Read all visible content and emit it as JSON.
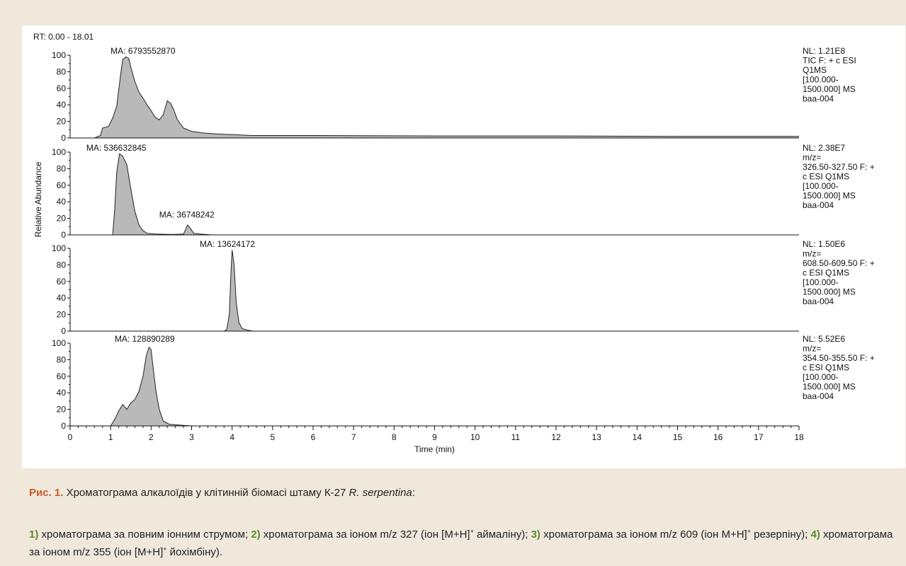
{
  "chart_data": {
    "type": "line",
    "header": "RT: 0.00 - 18.01",
    "ylabel": "Relative Abundance",
    "xlabel": "Time (min)",
    "xlim": [
      0,
      18
    ],
    "ylim": [
      0,
      100
    ],
    "x_ticks": [
      0,
      1,
      2,
      3,
      4,
      5,
      6,
      7,
      8,
      9,
      10,
      11,
      12,
      13,
      14,
      15,
      16,
      17,
      18
    ],
    "y_ticks": [
      0,
      20,
      40,
      60,
      80,
      100
    ],
    "panels": [
      {
        "area_label": "MA: 6793552870",
        "info": [
          "NL: 1.21E8",
          "TIC F: + c ESI",
          "Q1MS",
          "[100.000-",
          "1500.000]  MS",
          "baa-004"
        ],
        "points": [
          [
            0,
            0
          ],
          [
            0.6,
            0
          ],
          [
            0.75,
            3
          ],
          [
            0.8,
            12
          ],
          [
            0.95,
            14
          ],
          [
            1.05,
            24
          ],
          [
            1.15,
            38
          ],
          [
            1.25,
            78
          ],
          [
            1.3,
            95
          ],
          [
            1.38,
            98
          ],
          [
            1.45,
            96
          ],
          [
            1.5,
            85
          ],
          [
            1.6,
            68
          ],
          [
            1.7,
            55
          ],
          [
            1.8,
            48
          ],
          [
            1.9,
            40
          ],
          [
            2.0,
            33
          ],
          [
            2.1,
            25
          ],
          [
            2.2,
            22
          ],
          [
            2.3,
            28
          ],
          [
            2.4,
            45
          ],
          [
            2.48,
            42
          ],
          [
            2.55,
            35
          ],
          [
            2.65,
            22
          ],
          [
            2.8,
            12
          ],
          [
            3.0,
            8
          ],
          [
            3.3,
            6
          ],
          [
            3.6,
            5
          ],
          [
            4.0,
            4
          ],
          [
            4.5,
            3
          ],
          [
            6,
            3
          ],
          [
            9,
            2.5
          ],
          [
            12,
            2.5
          ],
          [
            15,
            2
          ],
          [
            18,
            2
          ]
        ],
        "label_x": 1.0
      },
      {
        "area_label": "MA: 536632845",
        "info": [
          "NL: 2.38E7",
          "m/z=",
          "326.50-327.50 F: +",
          "c ESI Q1MS",
          "[100.000-",
          "1500.000]  MS",
          "baa-004"
        ],
        "points": [
          [
            0,
            0
          ],
          [
            1.05,
            0
          ],
          [
            1.1,
            30
          ],
          [
            1.15,
            75
          ],
          [
            1.22,
            98
          ],
          [
            1.3,
            95
          ],
          [
            1.4,
            85
          ],
          [
            1.5,
            55
          ],
          [
            1.6,
            28
          ],
          [
            1.7,
            12
          ],
          [
            1.8,
            5
          ],
          [
            1.9,
            2
          ],
          [
            2.1,
            1
          ],
          [
            2.5,
            0.5
          ],
          [
            2.8,
            1
          ],
          [
            2.9,
            12
          ],
          [
            2.97,
            8
          ],
          [
            3.05,
            2
          ],
          [
            3.2,
            1
          ],
          [
            3.5,
            0
          ],
          [
            18,
            0
          ]
        ],
        "label_x": 0.4,
        "extra_label": {
          "x": 2.2,
          "text": "MA: 36748242",
          "y": 21
        }
      },
      {
        "area_label": "MA: 13624172",
        "info": [
          "NL: 1.50E6",
          "m/z=",
          "608.50-609.50 F: +",
          "c ESI Q1MS",
          "[100.000-",
          "1500.000]  MS",
          "baa-004"
        ],
        "points": [
          [
            0,
            0
          ],
          [
            3.8,
            0
          ],
          [
            3.87,
            2
          ],
          [
            3.93,
            20
          ],
          [
            3.97,
            70
          ],
          [
            4.0,
            98
          ],
          [
            4.05,
            80
          ],
          [
            4.1,
            35
          ],
          [
            4.17,
            10
          ],
          [
            4.25,
            3
          ],
          [
            4.4,
            1
          ],
          [
            4.5,
            0
          ],
          [
            18,
            0
          ]
        ],
        "label_x": 3.2
      },
      {
        "area_label": "MA: 128890289",
        "info": [
          "NL: 5.52E6",
          "m/z=",
          "354.50-355.50 F: +",
          "c ESI Q1MS",
          "[100.000-",
          "1500.000]  MS",
          "baa-004"
        ],
        "points": [
          [
            0,
            0
          ],
          [
            1.0,
            0
          ],
          [
            1.1,
            8
          ],
          [
            1.2,
            18
          ],
          [
            1.3,
            26
          ],
          [
            1.4,
            20
          ],
          [
            1.5,
            28
          ],
          [
            1.6,
            32
          ],
          [
            1.7,
            42
          ],
          [
            1.8,
            60
          ],
          [
            1.88,
            85
          ],
          [
            1.95,
            95
          ],
          [
            2.0,
            92
          ],
          [
            2.05,
            70
          ],
          [
            2.12,
            42
          ],
          [
            2.2,
            20
          ],
          [
            2.3,
            6
          ],
          [
            2.45,
            2
          ],
          [
            2.7,
            1
          ],
          [
            3.0,
            0
          ],
          [
            18,
            0
          ]
        ],
        "label_x": 1.1
      }
    ]
  },
  "caption": {
    "label": "Рис. 1.",
    "title_text": " Хроматограма алкалоїдів у клітинній біомасі штаму К-27 ",
    "species": "R. serpentina",
    "colon": ":",
    "items": [
      {
        "num": "1)",
        "text": " хроматограма за повним іонним струмом; "
      },
      {
        "num": "2)",
        "text": " хроматограма за іоном m/z 327 (іон [M+H]",
        "sup": "+",
        "after": " аймаліну); "
      },
      {
        "num": "3)",
        "text": " хроматограма за іоном m/z 609 (іон M+H]",
        "sup": "+",
        "after": " резерпіну); "
      },
      {
        "num": "4)",
        "text": " хроматограма за іоном m/z 355 (іон [M+H]",
        "sup": "+",
        "after": " йохімбіну)."
      }
    ]
  }
}
